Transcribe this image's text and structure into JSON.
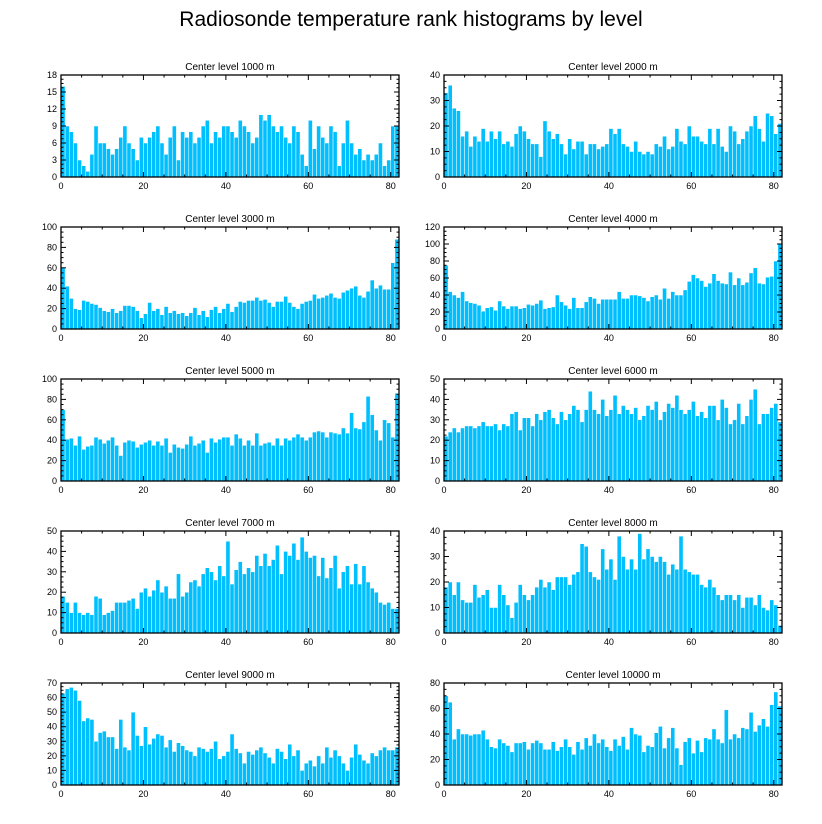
{
  "title": "Radiosonde temperature rank histograms by level",
  "colors": {
    "bar": "#00bfff",
    "bar_edge": "#ffffff",
    "axis": "#000000"
  },
  "chart_data": [
    {
      "type": "bar",
      "title": "Center level 1000 m",
      "xlim": [
        0,
        82
      ],
      "ylim": [
        0,
        18
      ],
      "xticks": [
        0,
        20,
        40,
        60,
        80
      ],
      "yticks": [
        0,
        3,
        6,
        9,
        12,
        15,
        18
      ],
      "values": [
        16,
        9,
        8,
        6,
        3,
        2,
        1,
        4,
        9,
        6,
        6,
        5,
        4,
        5,
        7,
        9,
        6,
        5,
        3,
        7,
        6,
        7,
        8,
        9,
        6,
        4,
        7,
        9,
        3,
        8,
        7,
        8,
        6,
        7,
        9,
        10,
        6,
        8,
        7,
        9,
        9,
        8,
        7,
        10,
        9,
        8,
        6,
        7,
        11,
        10,
        11,
        9,
        8,
        9,
        7,
        6,
        9,
        8,
        4,
        2,
        10,
        5,
        9,
        7,
        6,
        9,
        8,
        2,
        6,
        10,
        6,
        4,
        5,
        3,
        4,
        3,
        4,
        6,
        2,
        3,
        9,
        9
      ]
    },
    {
      "type": "bar",
      "title": "Center level 2000 m",
      "xlim": [
        0,
        82
      ],
      "ylim": [
        0,
        40
      ],
      "xticks": [
        0,
        20,
        40,
        60,
        80
      ],
      "yticks": [
        0,
        10,
        20,
        30,
        40
      ],
      "values": [
        33,
        36,
        27,
        26,
        16,
        18,
        12,
        16,
        14,
        19,
        14,
        18,
        15,
        18,
        13,
        14,
        12,
        17,
        20,
        18,
        15,
        13,
        13,
        8,
        22,
        18,
        15,
        17,
        13,
        9,
        15,
        11,
        14,
        14,
        9,
        13,
        13,
        11,
        12,
        13,
        19,
        17,
        19,
        13,
        12,
        10,
        14,
        10,
        9,
        10,
        9,
        13,
        12,
        16,
        11,
        12,
        19,
        14,
        13,
        20,
        16,
        16,
        14,
        13,
        19,
        13,
        19,
        12,
        10,
        20,
        18,
        13,
        15,
        18,
        20,
        24,
        19,
        14,
        25,
        24,
        17,
        21
      ]
    },
    {
      "type": "bar",
      "title": "Center level 3000 m",
      "xlim": [
        0,
        82
      ],
      "ylim": [
        0,
        100
      ],
      "xticks": [
        0,
        20,
        40,
        60,
        80
      ],
      "yticks": [
        0,
        20,
        40,
        60,
        80,
        100
      ],
      "values": [
        60,
        42,
        30,
        20,
        19,
        28,
        27,
        25,
        24,
        21,
        18,
        17,
        20,
        16,
        18,
        23,
        23,
        22,
        18,
        11,
        15,
        26,
        18,
        20,
        14,
        22,
        16,
        18,
        15,
        16,
        13,
        16,
        21,
        14,
        18,
        12,
        19,
        22,
        16,
        20,
        25,
        17,
        22,
        27,
        26,
        28,
        28,
        31,
        28,
        29,
        26,
        22,
        27,
        27,
        32,
        26,
        22,
        20,
        25,
        27,
        28,
        34,
        30,
        31,
        33,
        35,
        31,
        30,
        36,
        38,
        40,
        42,
        33,
        31,
        37,
        48,
        40,
        43,
        39,
        39,
        65,
        88
      ]
    },
    {
      "type": "bar",
      "title": "Center level 4000 m",
      "xlim": [
        0,
        82
      ],
      "ylim": [
        0,
        120
      ],
      "xticks": [
        0,
        20,
        40,
        60,
        80
      ],
      "yticks": [
        0,
        20,
        40,
        60,
        80,
        100,
        120
      ],
      "values": [
        75,
        44,
        40,
        37,
        44,
        33,
        31,
        30,
        28,
        21,
        25,
        26,
        22,
        33,
        27,
        24,
        27,
        27,
        24,
        25,
        29,
        28,
        30,
        34,
        24,
        25,
        26,
        40,
        32,
        28,
        24,
        37,
        25,
        25,
        32,
        38,
        36,
        30,
        35,
        35,
        35,
        35,
        44,
        36,
        36,
        40,
        40,
        39,
        37,
        33,
        38,
        40,
        35,
        48,
        36,
        44,
        40,
        40,
        46,
        56,
        64,
        60,
        57,
        50,
        54,
        65,
        57,
        54,
        53,
        67,
        52,
        60,
        52,
        55,
        66,
        72,
        54,
        53,
        61,
        62,
        80,
        100
      ]
    },
    {
      "type": "bar",
      "title": "Center level 5000 m",
      "xlim": [
        0,
        82
      ],
      "ylim": [
        0,
        100
      ],
      "xticks": [
        0,
        20,
        40,
        60,
        80
      ],
      "yticks": [
        0,
        20,
        40,
        60,
        80,
        100
      ],
      "values": [
        70,
        41,
        42,
        35,
        44,
        31,
        34,
        35,
        43,
        41,
        37,
        40,
        43,
        35,
        25,
        38,
        40,
        39,
        33,
        36,
        38,
        40,
        35,
        39,
        35,
        42,
        28,
        36,
        33,
        32,
        36,
        44,
        35,
        37,
        40,
        28,
        42,
        38,
        41,
        43,
        43,
        35,
        46,
        42,
        35,
        40,
        35,
        47,
        35,
        37,
        38,
        35,
        42,
        35,
        42,
        40,
        43,
        46,
        43,
        40,
        43,
        48,
        49,
        48,
        43,
        48,
        47,
        46,
        52,
        47,
        67,
        52,
        51,
        58,
        83,
        65,
        50,
        40,
        60,
        57,
        43,
        86
      ]
    },
    {
      "type": "bar",
      "title": "Center level 6000 m",
      "xlim": [
        0,
        82
      ],
      "ylim": [
        0,
        50
      ],
      "xticks": [
        0,
        20,
        40,
        60,
        80
      ],
      "yticks": [
        0,
        10,
        20,
        30,
        40,
        50
      ],
      "values": [
        22,
        24,
        26,
        24,
        26,
        27,
        27,
        26,
        27,
        29,
        27,
        27,
        28,
        25,
        28,
        27,
        33,
        34,
        25,
        31,
        31,
        27,
        33,
        30,
        34,
        35,
        31,
        28,
        34,
        30,
        33,
        37,
        35,
        29,
        35,
        44,
        35,
        33,
        40,
        32,
        35,
        42,
        33,
        37,
        35,
        33,
        36,
        30,
        32,
        37,
        35,
        39,
        30,
        34,
        38,
        36,
        42,
        35,
        33,
        35,
        39,
        32,
        34,
        31,
        37,
        37,
        30,
        40,
        36,
        28,
        30,
        38,
        28,
        32,
        40,
        45,
        28,
        33,
        33,
        36,
        38,
        29
      ]
    },
    {
      "type": "bar",
      "title": "Center level 7000 m",
      "xlim": [
        0,
        82
      ],
      "ylim": [
        0,
        50
      ],
      "xticks": [
        0,
        20,
        40,
        60,
        80
      ],
      "yticks": [
        0,
        10,
        20,
        30,
        40,
        50
      ],
      "values": [
        18,
        15,
        10,
        15,
        10,
        9,
        10,
        9,
        18,
        17,
        9,
        10,
        11,
        15,
        15,
        15,
        16,
        17,
        12,
        20,
        22,
        18,
        21,
        26,
        20,
        23,
        17,
        17,
        29,
        18,
        20,
        25,
        26,
        23,
        29,
        32,
        30,
        26,
        33,
        28,
        45,
        24,
        31,
        35,
        29,
        32,
        30,
        38,
        33,
        39,
        33,
        36,
        43,
        29,
        40,
        38,
        44,
        36,
        47,
        40,
        37,
        38,
        28,
        37,
        27,
        32,
        38,
        22,
        30,
        33,
        24,
        34,
        24,
        33,
        25,
        22,
        20,
        15,
        14,
        15,
        12,
        12
      ]
    },
    {
      "type": "bar",
      "title": "Center level 8000 m",
      "xlim": [
        0,
        82
      ],
      "ylim": [
        0,
        40
      ],
      "xticks": [
        0,
        20,
        40,
        60,
        80
      ],
      "yticks": [
        0,
        10,
        20,
        30,
        40
      ],
      "values": [
        18,
        20,
        15,
        20,
        13,
        12,
        12,
        19,
        14,
        15,
        17,
        10,
        10,
        19,
        15,
        11,
        6,
        12,
        19,
        15,
        13,
        15,
        18,
        21,
        18,
        20,
        17,
        22,
        22,
        22,
        19,
        23,
        24,
        35,
        34,
        24,
        22,
        21,
        33,
        25,
        29,
        21,
        38,
        30,
        25,
        29,
        25,
        39,
        29,
        33,
        30,
        28,
        30,
        28,
        23,
        27,
        25,
        38,
        25,
        24,
        23,
        23,
        19,
        18,
        21,
        18,
        15,
        13,
        15,
        15,
        13,
        15,
        10,
        14,
        14,
        11,
        15,
        10,
        9,
        13,
        11,
        3
      ]
    },
    {
      "type": "bar",
      "title": "Center level 9000 m",
      "xlim": [
        0,
        82
      ],
      "ylim": [
        0,
        70
      ],
      "xticks": [
        0,
        20,
        40,
        60,
        80
      ],
      "yticks": [
        0,
        10,
        20,
        30,
        40,
        50,
        60,
        70
      ],
      "values": [
        63,
        66,
        67,
        65,
        58,
        44,
        46,
        45,
        30,
        36,
        37,
        33,
        33,
        25,
        45,
        26,
        24,
        50,
        34,
        27,
        40,
        28,
        32,
        35,
        34,
        26,
        31,
        23,
        29,
        27,
        24,
        23,
        20,
        26,
        25,
        23,
        25,
        30,
        18,
        20,
        23,
        35,
        25,
        22,
        15,
        23,
        21,
        24,
        26,
        22,
        19,
        15,
        25,
        23,
        18,
        28,
        20,
        24,
        10,
        15,
        17,
        13,
        20,
        15,
        26,
        19,
        24,
        20,
        15,
        10,
        19,
        28,
        21,
        17,
        15,
        22,
        20,
        24,
        26,
        24,
        24,
        26
      ]
    },
    {
      "type": "bar",
      "title": "Center level 10000 m",
      "xlim": [
        0,
        82
      ],
      "ylim": [
        0,
        80
      ],
      "xticks": [
        0,
        20,
        40,
        60,
        80
      ],
      "yticks": [
        0,
        20,
        40,
        60,
        80
      ],
      "values": [
        70,
        65,
        36,
        44,
        40,
        40,
        39,
        40,
        40,
        43,
        36,
        30,
        29,
        36,
        33,
        31,
        26,
        33,
        33,
        34,
        28,
        33,
        35,
        33,
        28,
        28,
        34,
        27,
        30,
        36,
        30,
        24,
        34,
        28,
        37,
        31,
        40,
        33,
        36,
        30,
        27,
        36,
        31,
        38,
        28,
        45,
        40,
        39,
        26,
        31,
        30,
        41,
        46,
        29,
        37,
        45,
        29,
        16,
        34,
        37,
        25,
        35,
        26,
        37,
        36,
        44,
        36,
        33,
        59,
        36,
        40,
        37,
        45,
        44,
        57,
        42,
        47,
        52,
        46,
        63,
        73,
        62
      ]
    }
  ]
}
